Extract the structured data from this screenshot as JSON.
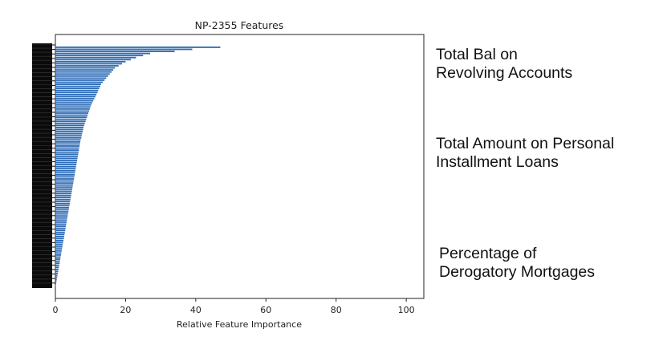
{
  "chart_data": {
    "type": "bar",
    "orientation": "horizontal",
    "title": "NP-2355 Features",
    "xlabel": "Relative Feature Importance",
    "ylabel": "",
    "xlim": [
      0,
      105
    ],
    "xticks": [
      0,
      20,
      40,
      60,
      80,
      100
    ],
    "grid": false,
    "bar_color": "#2d6bb5",
    "values": [
      47,
      39,
      34,
      27,
      25,
      23,
      21.5,
      20,
      19,
      18,
      17,
      16.5,
      16,
      15.5,
      15,
      14.5,
      14,
      13.5,
      13,
      12.8,
      12.5,
      12.2,
      12,
      11.7,
      11.4,
      11.1,
      10.8,
      10.5,
      10.2,
      10,
      9.8,
      9.6,
      9.4,
      9.2,
      9,
      8.8,
      8.6,
      8.4,
      8.2,
      8,
      7.9,
      7.8,
      7.6,
      7.5,
      7.4,
      7.2,
      7.1,
      7,
      6.9,
      6.8,
      6.7,
      6.6,
      6.5,
      6.4,
      6.3,
      6.2,
      6.1,
      6,
      5.9,
      5.8,
      5.7,
      5.6,
      5.5,
      5.4,
      5.3,
      5.2,
      5.1,
      5,
      4.9,
      4.8,
      4.7,
      4.6,
      4.5,
      4.4,
      4.3,
      4.2,
      4.1,
      4,
      3.9,
      3.8,
      3.7,
      3.6,
      3.5,
      3.4,
      3.3,
      3.2,
      3.1,
      3,
      2.9,
      2.8,
      2.7,
      2.6,
      2.5,
      2.4,
      2.3,
      2.2,
      2.1,
      2,
      1.9,
      1.8,
      1.7,
      1.6,
      1.5,
      1.4,
      1.3,
      1.2,
      1.1,
      1,
      0.9,
      0.8,
      0.7,
      0.6,
      0.5,
      0.4,
      0.3,
      0.2,
      0.1
    ]
  },
  "annotations": [
    {
      "lines": [
        "Total Bal on",
        "Revolving Accounts"
      ]
    },
    {
      "lines": [
        "Total Amount on Personal",
        "Installment Loans"
      ]
    },
    {
      "lines": [
        "Percentage of",
        "Derogatory Mortgages"
      ]
    }
  ]
}
